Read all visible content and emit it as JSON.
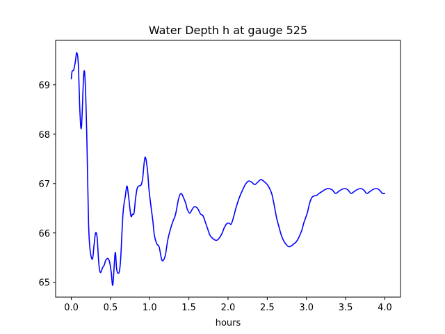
{
  "chart_data": {
    "type": "line",
    "title": "Water Depth h at gauge 525",
    "xlabel": "hours",
    "ylabel": "",
    "xlim": [
      -0.2,
      4.2
    ],
    "ylim": [
      64.7,
      69.9
    ],
    "xticks": [
      0.0,
      0.5,
      1.0,
      1.5,
      2.0,
      2.5,
      3.0,
      3.5,
      4.0
    ],
    "xtick_labels": [
      "0.0",
      "0.5",
      "1.0",
      "1.5",
      "2.0",
      "2.5",
      "3.0",
      "3.5",
      "4.0"
    ],
    "yticks": [
      65,
      66,
      67,
      68,
      69
    ],
    "ytick_labels": [
      "65",
      "66",
      "67",
      "68",
      "69"
    ],
    "grid": false,
    "series": [
      {
        "name": "",
        "color": "#0000ff",
        "x": [
          0.0,
          0.01,
          0.03,
          0.05,
          0.07,
          0.09,
          0.11,
          0.13,
          0.16,
          0.18,
          0.2,
          0.22,
          0.24,
          0.27,
          0.29,
          0.31,
          0.33,
          0.35,
          0.37,
          0.4,
          0.42,
          0.44,
          0.47,
          0.49,
          0.51,
          0.53,
          0.56,
          0.58,
          0.61,
          0.63,
          0.66,
          0.69,
          0.71,
          0.73,
          0.76,
          0.78,
          0.8,
          0.82,
          0.84,
          0.86,
          0.89,
          0.91,
          0.94,
          0.97,
          0.99,
          1.01,
          1.04,
          1.06,
          1.09,
          1.12,
          1.15,
          1.17,
          1.2,
          1.23,
          1.26,
          1.3,
          1.32,
          1.34,
          1.37,
          1.4,
          1.43,
          1.46,
          1.48,
          1.51,
          1.54,
          1.57,
          1.61,
          1.65,
          1.68,
          1.71,
          1.74,
          1.77,
          1.81,
          1.85,
          1.88,
          1.92,
          1.95,
          1.98,
          2.01,
          2.04,
          2.07,
          2.1,
          2.14,
          2.18,
          2.22,
          2.26,
          2.3,
          2.34,
          2.38,
          2.42,
          2.46,
          2.5,
          2.53,
          2.56,
          2.59,
          2.62,
          2.65,
          2.68,
          2.71,
          2.75,
          2.78,
          2.81,
          2.84,
          2.87,
          2.9,
          2.94,
          2.97,
          3.01,
          3.04,
          3.07,
          3.1,
          3.13,
          3.16,
          3.2,
          3.24,
          3.28,
          3.33,
          3.37,
          3.41,
          3.45,
          3.49,
          3.53,
          3.57,
          3.61,
          3.65,
          3.69,
          3.73,
          3.77,
          3.81,
          3.85,
          3.89,
          3.93,
          3.97,
          4.0
        ],
        "y": [
          69.12,
          69.27,
          69.3,
          69.45,
          69.65,
          69.4,
          68.45,
          68.15,
          69.24,
          68.95,
          67.8,
          66.2,
          65.65,
          65.47,
          65.75,
          66.0,
          65.9,
          65.4,
          65.2,
          65.3,
          65.35,
          65.45,
          65.48,
          65.4,
          65.2,
          64.95,
          65.6,
          65.25,
          65.2,
          65.48,
          66.4,
          66.75,
          66.95,
          66.75,
          66.35,
          66.38,
          66.4,
          66.7,
          66.9,
          66.95,
          66.97,
          67.1,
          67.53,
          67.3,
          66.9,
          66.62,
          66.25,
          65.95,
          65.78,
          65.72,
          65.48,
          65.44,
          65.55,
          65.85,
          66.05,
          66.25,
          66.32,
          66.45,
          66.7,
          66.8,
          66.72,
          66.6,
          66.48,
          66.4,
          66.47,
          66.53,
          66.5,
          66.38,
          66.35,
          66.22,
          66.08,
          65.95,
          65.88,
          65.85,
          65.88,
          65.98,
          66.1,
          66.18,
          66.2,
          66.18,
          66.32,
          66.5,
          66.7,
          66.85,
          66.98,
          67.05,
          67.03,
          66.98,
          67.03,
          67.08,
          67.04,
          66.98,
          66.9,
          66.78,
          66.55,
          66.3,
          66.12,
          65.95,
          65.84,
          65.75,
          65.72,
          65.74,
          65.78,
          65.82,
          65.9,
          66.05,
          66.22,
          66.4,
          66.6,
          66.72,
          66.75,
          66.76,
          66.8,
          66.84,
          66.88,
          66.9,
          66.87,
          66.8,
          66.84,
          66.88,
          66.9,
          66.87,
          66.8,
          66.84,
          66.88,
          66.9,
          66.87,
          66.8,
          66.84,
          66.88,
          66.9,
          66.87,
          66.8,
          66.8
        ]
      }
    ]
  }
}
